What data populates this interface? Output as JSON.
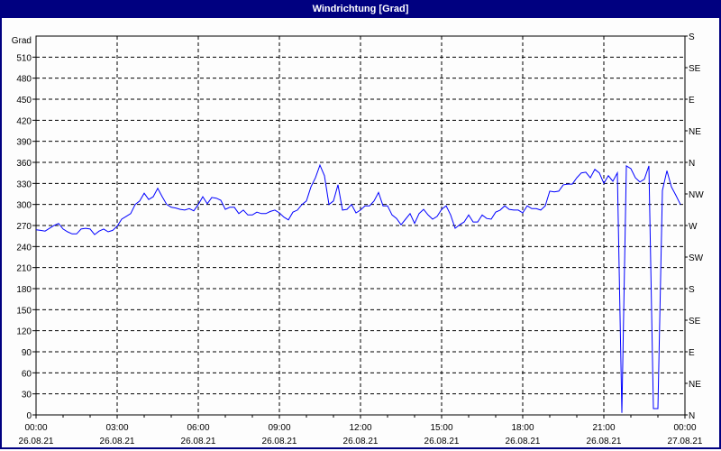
{
  "window": {
    "title": "Windrichtung [Grad]"
  },
  "colors": {
    "title_bar": "#000080",
    "series": "#0000ff",
    "grid": "#000000"
  },
  "chart_data": {
    "type": "line",
    "title": "Windrichtung [Grad]",
    "ylabel": "Grad",
    "ylim": [
      0,
      540
    ],
    "y_ticks": [
      "0",
      "30",
      "60",
      "90",
      "120",
      "150",
      "180",
      "210",
      "240",
      "270",
      "300",
      "330",
      "360",
      "390",
      "420",
      "450",
      "480",
      "510"
    ],
    "y2_ticks": [
      "N",
      "NE",
      "E",
      "SE",
      "S",
      "SW",
      "W",
      "NW",
      "N",
      "NE",
      "E",
      "SE",
      "S"
    ],
    "x_ticks": [
      {
        "time": "00:00",
        "date": "26.08.21"
      },
      {
        "time": "03:00",
        "date": "26.08.21"
      },
      {
        "time": "06:00",
        "date": "26.08.21"
      },
      {
        "time": "09:00",
        "date": "26.08.21"
      },
      {
        "time": "12:00",
        "date": "26.08.21"
      },
      {
        "time": "15:00",
        "date": "26.08.21"
      },
      {
        "time": "18:00",
        "date": "26.08.21"
      },
      {
        "time": "21:00",
        "date": "26.08.21"
      },
      {
        "time": "00:00",
        "date": "27.08.21"
      }
    ],
    "xlim": [
      "26.08.21 00:00",
      "27.08.21 00:00"
    ],
    "grid": true,
    "series": [
      {
        "color": "#0000ff",
        "x_start": "26.08.21 00:00",
        "x_step": "00:10",
        "values": [
          264,
          263,
          262,
          266,
          270,
          273,
          265,
          261,
          258,
          258,
          265,
          266,
          265,
          257,
          262,
          265,
          261,
          263,
          269,
          279,
          283,
          287,
          300,
          305,
          316,
          307,
          311,
          323,
          311,
          300,
          296,
          295,
          293,
          292,
          294,
          291,
          300,
          311,
          301,
          310,
          309,
          306,
          293,
          296,
          296,
          287,
          292,
          285,
          285,
          289,
          287,
          287,
          290,
          292,
          288,
          282,
          278,
          289,
          292,
          300,
          305,
          325,
          338,
          356,
          341,
          300,
          305,
          328,
          292,
          293,
          300,
          288,
          292,
          298,
          298,
          305,
          317,
          298,
          298,
          285,
          280,
          271,
          279,
          287,
          273,
          287,
          293,
          285,
          279,
          283,
          293,
          298,
          285,
          266,
          271,
          275,
          285,
          275,
          275,
          285,
          280,
          279,
          289,
          292,
          298,
          293,
          292,
          292,
          288,
          298,
          294,
          294,
          292,
          298,
          319,
          318,
          319,
          328,
          329,
          329,
          338,
          345,
          346,
          338,
          350,
          345,
          330,
          341,
          333,
          345,
          3,
          355,
          351,
          338,
          332,
          336,
          355,
          9,
          9,
          320,
          348,
          325,
          313,
          300
        ]
      }
    ]
  }
}
